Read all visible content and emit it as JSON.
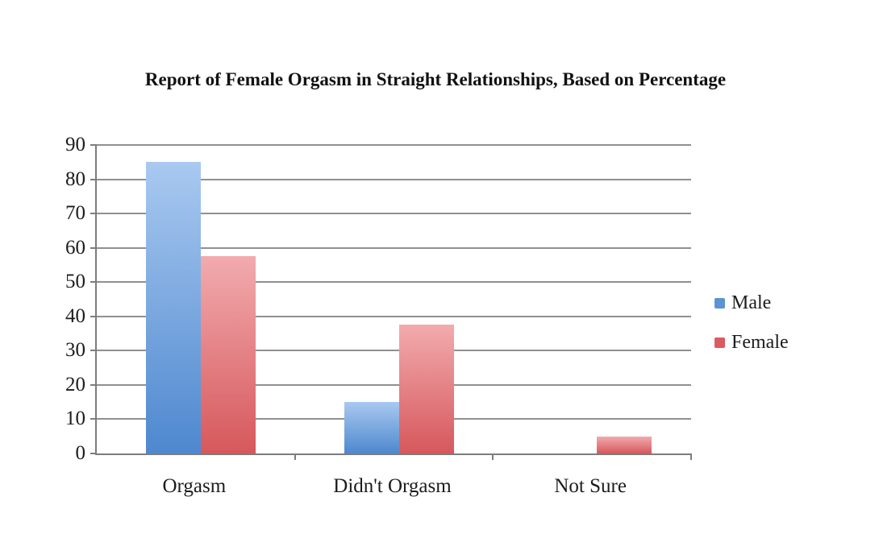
{
  "chart_data": {
    "type": "bar",
    "title": "Report of Female Orgasm in Straight Relationships, Based on Percentage",
    "categories": [
      "Orgasm",
      "Didn't Orgasm",
      "Not Sure"
    ],
    "series": [
      {
        "name": "Male",
        "values": [
          85,
          15,
          0
        ],
        "color_top": "#a9c9f0",
        "color_bottom": "#4e88cf",
        "legend_color": "#5b93d5"
      },
      {
        "name": "Female",
        "values": [
          57.5,
          37.5,
          5
        ],
        "color_top": "#f2abae",
        "color_bottom": "#d6585c",
        "legend_color": "#da5b60"
      }
    ],
    "xlabel": "",
    "ylabel": "",
    "y_axis": {
      "min": 0,
      "max": 90,
      "step": 10,
      "tick_labels": [
        "0",
        "10",
        "20",
        "30",
        "40",
        "50",
        "60",
        "70",
        "80",
        "90"
      ]
    },
    "legend_position": "right",
    "grid": true,
    "colors": {
      "gridline": "#909090",
      "axis": "#7d7d7d",
      "text": "#1c1c1c",
      "background": "#ffffff"
    }
  }
}
